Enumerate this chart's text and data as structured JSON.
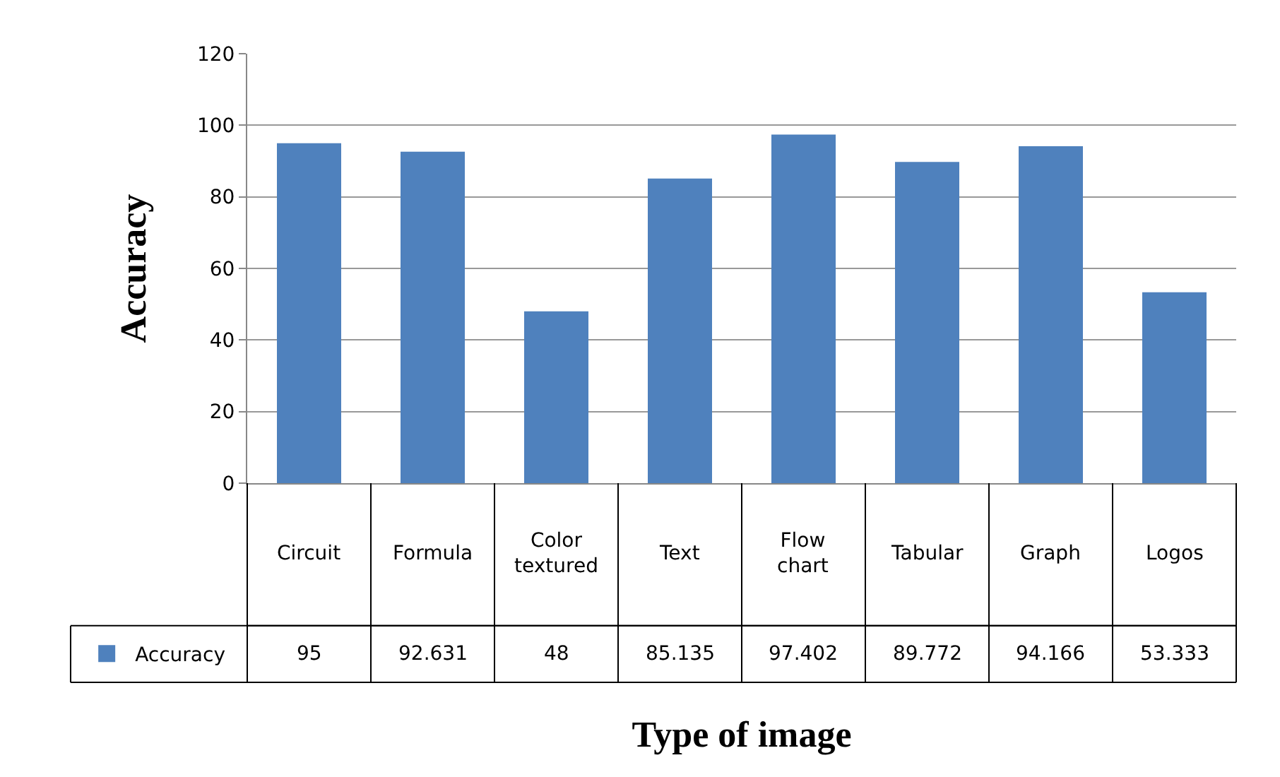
{
  "chart_data": {
    "type": "bar",
    "xlabel": "Type of image",
    "ylabel": "Accuracy",
    "categories": [
      "Circuit",
      "Formula",
      "Color textured",
      "Text",
      "Flow chart",
      "Tabular",
      "Graph",
      "Logos"
    ],
    "series": [
      {
        "name": "Accuracy",
        "color": "#4f81bd",
        "values": [
          95,
          92.631,
          48,
          85.135,
          97.402,
          89.772,
          94.166,
          53.333
        ]
      }
    ],
    "ylim": [
      0,
      120
    ],
    "yticks": [
      0,
      20,
      40,
      60,
      80,
      100,
      120
    ],
    "grid": "y",
    "legend": "bottom left",
    "data_labels": true
  }
}
